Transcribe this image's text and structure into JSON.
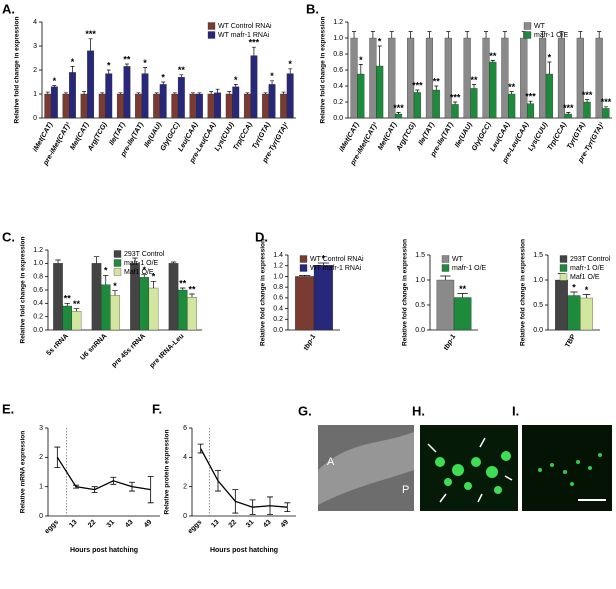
{
  "chart_data": [
    {
      "type": "bar",
      "panel": "A.",
      "ylabel": "Relative fold change in expression",
      "categories": [
        "iMet(CAT)",
        "pre-iMet(CAT)¹",
        "Met(CAT)",
        "Arg(TCG)",
        "Ile(TAT)",
        "pre-Ile(TAT)",
        "Ile(UAU)",
        "Gly(GCC)",
        "Leu(CAA)",
        "pre-Leu(CAA)",
        "Lys(CUU)",
        "Trp(CCA)",
        "Tyr(GTA)",
        "pre-Tyr(GTA)¹"
      ],
      "series": [
        {
          "name": "WT Control RNAi",
          "color": "#7a3b32",
          "values": [
            1,
            1,
            1,
            1,
            1,
            1,
            1,
            1,
            1,
            1,
            1,
            1,
            1,
            1
          ],
          "errors": [
            0.08,
            0.05,
            0.1,
            0.05,
            0.05,
            0.05,
            0.05,
            0.05,
            0.05,
            0.1,
            0.1,
            0.05,
            0.05,
            0.08
          ]
        },
        {
          "name": "WT mafr-1 RNAi",
          "color": "#28287a",
          "values": [
            1.3,
            1.9,
            2.8,
            1.85,
            2.15,
            1.85,
            1.4,
            1.7,
            1.0,
            1.05,
            1.3,
            2.6,
            1.4,
            1.85
          ],
          "errors": [
            0.05,
            0.25,
            0.5,
            0.15,
            0.1,
            0.25,
            0.1,
            0.1,
            0.05,
            0.15,
            0.1,
            0.35,
            0.15,
            0.2
          ],
          "significance": [
            "*",
            "*",
            "***",
            "*",
            "**",
            "*",
            "*",
            "**",
            null,
            null,
            "*",
            "***",
            "*",
            "*"
          ]
        }
      ],
      "ylim": [
        0,
        4
      ],
      "yticks": [
        0,
        1,
        2,
        3,
        4
      ],
      "legend": "upper right"
    },
    {
      "type": "bar",
      "panel": "B.",
      "ylabel": "Relative fold change in expression",
      "categories": [
        "iMet(CAT)",
        "pre-iMet(CAT)¹",
        "Met(CAT)",
        "Arg(TCG)",
        "Ile(TAT)",
        "pre-Ile(TAT)",
        "Ile(UAU)",
        "Gly(GCC)",
        "Leu(CAA)",
        "pre-Leu(CAA)",
        "Lys(CUU)",
        "Trp(CCA)",
        "Tyr(GTA)",
        "pre-Tyr(GTA)¹"
      ],
      "series": [
        {
          "name": "WT",
          "color": "#8a8a8a",
          "values": [
            1,
            1,
            1,
            1,
            1,
            1,
            1,
            1,
            1,
            1,
            1,
            1,
            1,
            1
          ],
          "errors": [
            0.08,
            0.08,
            0.08,
            0.08,
            0.08,
            0.08,
            0.08,
            0.08,
            0.08,
            0.08,
            0.08,
            0.08,
            0.08,
            0.08
          ]
        },
        {
          "name": "mafr-1 O/E",
          "color": "#1d8a3c",
          "values": [
            0.55,
            0.65,
            0.05,
            0.32,
            0.35,
            0.17,
            0.37,
            0.7,
            0.3,
            0.18,
            0.55,
            0.05,
            0.2,
            0.12
          ],
          "errors": [
            0.12,
            0.25,
            0.02,
            0.03,
            0.05,
            0.03,
            0.05,
            0.02,
            0.03,
            0.03,
            0.15,
            0.02,
            0.03,
            0.02
          ],
          "significance": [
            "*",
            "*",
            "***",
            "***",
            "**",
            "***",
            "**",
            "**",
            "**",
            "***",
            "*",
            "***",
            "***",
            "***"
          ]
        }
      ],
      "ylim": [
        0,
        1.2
      ],
      "yticks": [
        {
          "value": 0,
          "label": "0.0"
        },
        0.2,
        0.4,
        0.6,
        0.8,
        {
          "value": 1,
          "label": "1.0"
        },
        1.2
      ],
      "legend": "upper right"
    },
    {
      "type": "bar",
      "panel": "C.",
      "ylabel": "Relative fold change in expression",
      "categories": [
        "5s rRNA",
        "U6 snRNA",
        "pre 45s rRNA",
        "pre tRNA-Leu"
      ],
      "series": [
        {
          "name": "293T Control",
          "color": "#444444",
          "values": [
            1,
            1,
            1,
            1
          ],
          "errors": [
            0.05,
            0.1,
            0.08,
            0.02
          ]
        },
        {
          "name": "mafr-1 O/E",
          "color": "#1d8a3c",
          "values": [
            0.36,
            0.68,
            0.79,
            0.6
          ],
          "errors": [
            0.04,
            0.14,
            0.04,
            0.03
          ],
          "significance": [
            "**",
            "*",
            "*",
            "**"
          ]
        },
        {
          "name": "Maf1 O/E",
          "color": "#d3e6a0",
          "values": [
            0.28,
            0.52,
            0.63,
            0.49
          ],
          "errors": [
            0.04,
            0.07,
            0.1,
            0.05
          ],
          "significance": [
            "**",
            "*",
            "*",
            "**"
          ]
        }
      ],
      "ylim": [
        0,
        1.2
      ],
      "yticks": [
        {
          "value": 0,
          "label": "0.0"
        },
        0.2,
        0.4,
        0.6,
        0.8,
        {
          "value": 1,
          "label": "1.0"
        },
        1.2
      ],
      "legend": "upper right"
    },
    {
      "type": "bar",
      "panel": "D.",
      "ylabel": "Relative fold change in expression",
      "categories": [
        "tbp-1"
      ],
      "series": [
        {
          "name": "WT Control RNAi",
          "color": "#7a3b32",
          "values": [
            1.0
          ],
          "errors": [
            0.02
          ]
        },
        {
          "name": "WT mafr-1 RNAi",
          "color": "#28287a",
          "values": [
            1.21
          ],
          "errors": [
            0.04
          ],
          "significance": [
            "*"
          ]
        }
      ],
      "ylim": [
        0,
        1.4
      ],
      "yticks": [
        {
          "value": 0,
          "label": "0.0"
        },
        0.2,
        0.4,
        0.6,
        0.8,
        {
          "value": 1,
          "label": "1.0"
        },
        1.2,
        1.4
      ],
      "legend": "upper left"
    },
    {
      "type": "bar",
      "ylabel": "Relative fold change in expression",
      "categories": [
        "tbp-1"
      ],
      "series": [
        {
          "name": "WT",
          "color": "#8a8a8a",
          "values": [
            1.0
          ],
          "errors": [
            0.08
          ]
        },
        {
          "name": "mafr-1 O/E",
          "color": "#1d8a3c",
          "values": [
            0.65
          ],
          "errors": [
            0.08
          ],
          "significance": [
            "**"
          ]
        }
      ],
      "ylim": [
        0,
        1.5
      ],
      "yticks": [
        {
          "value": 0,
          "label": "0.0"
        },
        0.5,
        {
          "value": 1,
          "label": "1.0"
        },
        1.5
      ],
      "legend": "upper left"
    },
    {
      "type": "bar",
      "ylabel": "Relative fold change in expression",
      "categories": [
        "TBP"
      ],
      "series": [
        {
          "name": "293T Control",
          "color": "#444444",
          "values": [
            1.0
          ],
          "errors": [
            0.13
          ]
        },
        {
          "name": "mafr-1 O/E",
          "color": "#1d8a3c",
          "values": [
            0.69
          ],
          "errors": [
            0.07
          ],
          "significance": [
            "*"
          ]
        },
        {
          "name": "Maf1 O/E",
          "color": "#d3e6a0",
          "values": [
            0.64
          ],
          "errors": [
            0.07
          ],
          "significance": [
            "*"
          ]
        }
      ],
      "ylim": [
        0,
        1.5
      ],
      "yticks": [
        {
          "value": 0,
          "label": "0.0"
        },
        0.5,
        {
          "value": 1,
          "label": "1.0"
        },
        1.5
      ],
      "legend": "upper left"
    },
    {
      "type": "line",
      "panel": "E.",
      "ylabel": "Relative mRNA expression",
      "xlabel": "Hours post hatching",
      "categories": [
        "eggs",
        "13",
        "22",
        "31",
        "43",
        "49"
      ],
      "values": [
        2.0,
        1.0,
        0.9,
        1.2,
        1.0,
        0.9
      ],
      "errors": [
        0.35,
        0.05,
        0.1,
        0.12,
        0.15,
        0.45
      ],
      "color": "#000000",
      "ylim": [
        0,
        3
      ],
      "yticks": [
        0,
        1,
        2,
        3
      ]
    },
    {
      "type": "line",
      "panel": "F.",
      "ylabel": "Relative protein expression",
      "xlabel": "Hours post hatching",
      "categories": [
        "eggs",
        "13",
        "22",
        "31",
        "43",
        "49"
      ],
      "values": [
        4.6,
        2.4,
        1.0,
        0.6,
        0.7,
        0.6
      ],
      "errors": [
        0.3,
        0.7,
        0.8,
        0.5,
        0.6,
        0.3
      ],
      "color": "#000000",
      "ylim": [
        0,
        6
      ],
      "yticks": [
        0,
        2,
        4,
        6
      ]
    }
  ],
  "images": [
    {
      "panel": "G.",
      "labels": [
        "A",
        "P"
      ]
    },
    {
      "panel": "H."
    },
    {
      "panel": "I."
    }
  ]
}
